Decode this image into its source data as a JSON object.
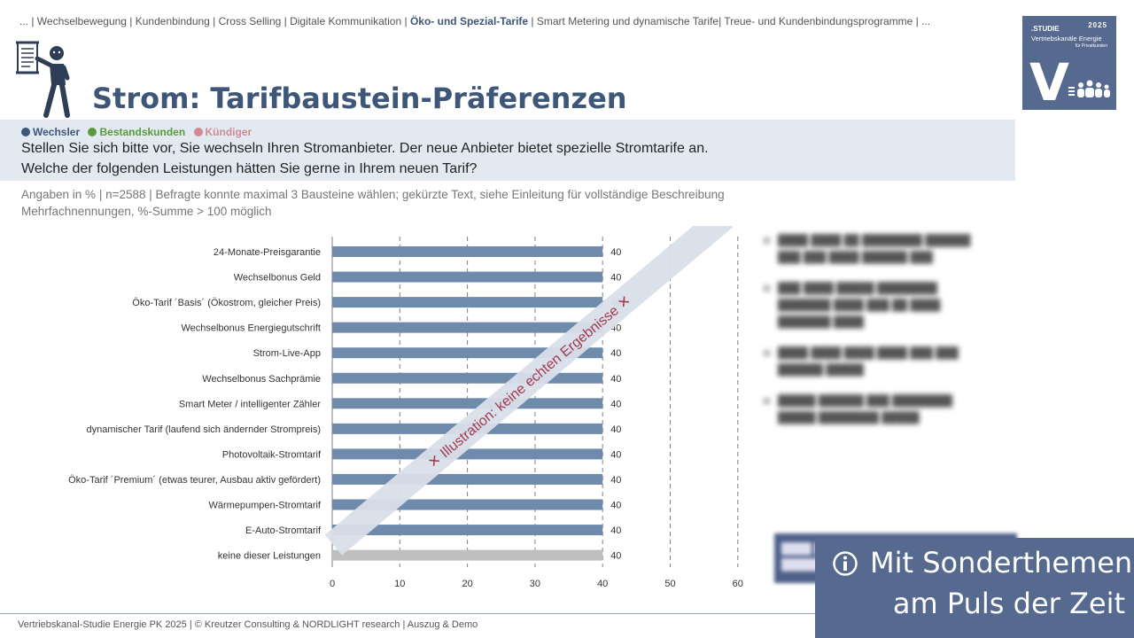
{
  "header": {
    "breadcrumb_before": "... | Wechselbewegung | Kundenbindung | Cross Selling | Digitale Kommunikation | ",
    "breadcrumb_active": "Öko- und Spezial-Tarife",
    "breadcrumb_after": " | Smart Metering und dynamische Tarife| Treue- und Kundenbindungsprogramme | ...",
    "title": "Strom: Tarifbaustein-Präferenzen"
  },
  "logo": {
    "studie": ".STUDIE",
    "year": "2025",
    "subtitle": "Vertriebskanäle Energie",
    "subtitle2": "für Privatkunden",
    "letter": "V"
  },
  "legend": [
    {
      "label": "Wechsler",
      "color": "#3e5678"
    },
    {
      "label": "Bestandskunden",
      "color": "#5a9a3e"
    },
    {
      "label": "Kündiger",
      "color": "#d08a92"
    }
  ],
  "question": {
    "line1": "Stellen Sie sich bitte vor, Sie wechseln Ihren Stromanbieter. Der neue Anbieter bietet spezielle Stromtarife an.",
    "line2": "Welche der folgenden Leistungen hätten Sie gerne in Ihrem neuen Tarif?"
  },
  "note": {
    "line1": "Angaben in % | n=2588 | Befragte konnte maximal 3 Bausteine wählen; gekürzte Text, siehe Einleitung für vollständige Beschreibung",
    "line2": "Mehrfachnennungen, %-Summe > 100 möglich"
  },
  "chart_data": {
    "type": "bar",
    "orientation": "horizontal",
    "categories": [
      "24-Monate-Preisgarantie",
      "Wechselbonus Geld",
      "Öko-Tarif ´Basis´ (Ökostrom, gleicher Preis)",
      "Wechselbonus Energiegutschrift",
      "Strom-Live-App",
      "Wechselbonus Sachprämie",
      "Smart Meter / intelligenter Zähler",
      "dynamischer Tarif (laufend sich ändernder Strompreis)",
      "Photovoltaik-Stromtarif",
      "Öko-Tarif ´Premium´ (etwas teurer, Ausbau aktiv gefördert)",
      "Wärmepumpen-Stromtarif",
      "E-Auto-Stromtarif",
      "keine dieser Leistungen"
    ],
    "values": [
      40,
      40,
      40,
      40,
      40,
      40,
      40,
      40,
      40,
      40,
      40,
      40,
      40
    ],
    "xlim": [
      0,
      60
    ],
    "xticks": [
      0,
      10,
      20,
      30,
      40,
      50,
      60
    ],
    "grid": "vertical dashed",
    "bar_color": "#6f8bab",
    "last_bar_color": "#bfbfbf"
  },
  "watermark": {
    "text": "Illustration: keine echten Ergebnisse",
    "mark": "✕"
  },
  "banner": {
    "line1": "Mit Sonderthemen",
    "line2": "am Puls der Zeit"
  },
  "footer": {
    "text": "Vertriebskanal-Studie Energie PK 2025 | © Kreutzer Consulting & NORDLIGHT research | Auszug & Demo"
  }
}
